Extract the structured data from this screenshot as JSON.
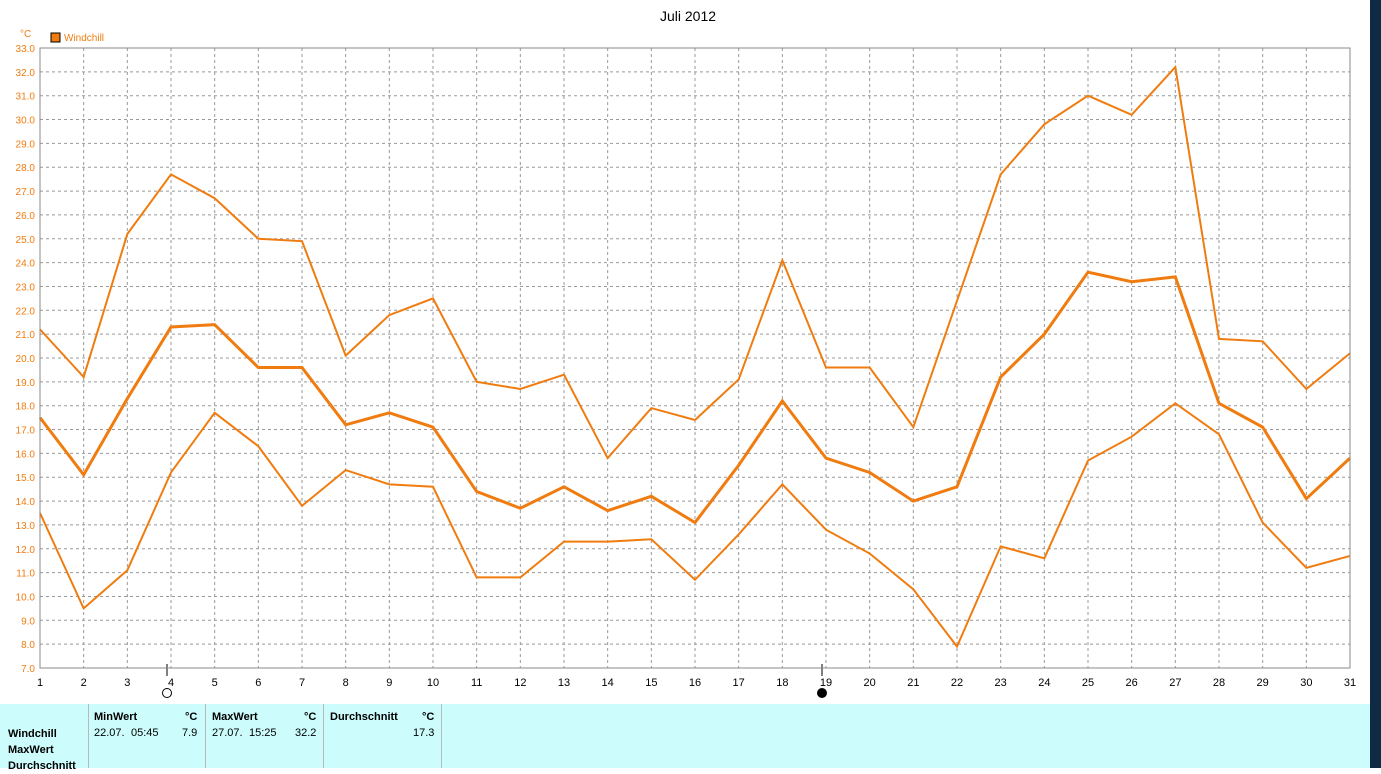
{
  "chart_data": {
    "type": "line",
    "title": "Juli 2012",
    "ylabel": "°C",
    "xlabel": "",
    "ylim": [
      7.0,
      33.0
    ],
    "xlim": [
      1,
      31
    ],
    "grid": true,
    "legend_placement": "top-left",
    "legend": [
      "Windchill"
    ],
    "color": "#f07c10",
    "x": [
      1,
      2,
      3,
      4,
      5,
      6,
      7,
      8,
      9,
      10,
      11,
      12,
      13,
      14,
      15,
      16,
      17,
      18,
      19,
      20,
      21,
      22,
      23,
      24,
      25,
      26,
      27,
      28,
      29,
      30,
      31
    ],
    "yticks": [
      "7.0",
      "8.0",
      "9.0",
      "10.0",
      "11.0",
      "12.0",
      "13.0",
      "14.0",
      "15.0",
      "16.0",
      "17.0",
      "18.0",
      "19.0",
      "20.0",
      "21.0",
      "22.0",
      "23.0",
      "24.0",
      "25.0",
      "26.0",
      "27.0",
      "28.0",
      "29.0",
      "30.0",
      "31.0",
      "32.0",
      "33.0"
    ],
    "series": [
      {
        "name": "Windchill",
        "role": "max",
        "width": 2,
        "values": [
          21.2,
          19.2,
          25.2,
          27.7,
          26.7,
          25.0,
          24.9,
          20.1,
          21.8,
          22.5,
          19.0,
          18.7,
          19.3,
          15.8,
          17.9,
          17.4,
          19.1,
          24.1,
          19.6,
          19.6,
          17.1,
          22.4,
          27.7,
          29.8,
          31.0,
          30.2,
          32.2,
          20.8,
          20.7,
          18.7,
          20.2
        ]
      },
      {
        "name": "Windchill",
        "role": "avg",
        "width": 3,
        "values": [
          17.5,
          15.1,
          18.3,
          21.3,
          21.4,
          19.6,
          19.6,
          17.2,
          17.7,
          17.1,
          14.4,
          13.7,
          14.6,
          13.6,
          14.2,
          13.1,
          15.5,
          18.2,
          15.8,
          15.2,
          14.0,
          14.6,
          19.2,
          21.0,
          23.6,
          23.2,
          23.4,
          18.1,
          17.1,
          14.1,
          15.8
        ]
      },
      {
        "name": "Windchill",
        "role": "min",
        "width": 2,
        "values": [
          13.5,
          9.5,
          11.1,
          15.2,
          17.7,
          16.3,
          13.8,
          15.3,
          14.7,
          14.6,
          10.8,
          10.8,
          12.3,
          12.3,
          12.4,
          10.7,
          12.6,
          14.7,
          12.8,
          11.8,
          10.3,
          7.9,
          12.1,
          11.6,
          15.7,
          16.7,
          18.1,
          16.8,
          13.1,
          11.2,
          11.7
        ]
      }
    ],
    "moon_markers": [
      {
        "day": 4,
        "phase": "full-moon"
      },
      {
        "day": 19,
        "phase": "new-moon"
      }
    ]
  },
  "stats": {
    "row_labels": [
      "Windchill",
      "MaxWert",
      "Durchschnitt"
    ],
    "min": {
      "header": "MinWert",
      "unit": "°C",
      "date": "22.07.",
      "time": "05:45",
      "value": "7.9"
    },
    "max": {
      "header": "MaxWert",
      "unit": "°C",
      "date": "27.07.",
      "time": "15:25",
      "value": "32.2"
    },
    "avg": {
      "header": "Durchschnitt",
      "unit": "°C",
      "value": "17.3"
    }
  }
}
